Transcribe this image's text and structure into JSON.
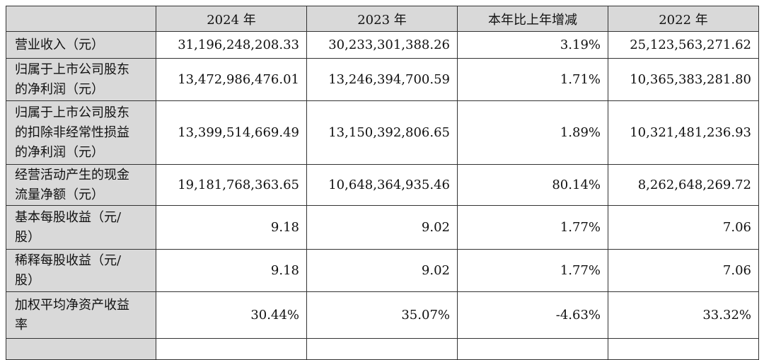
{
  "table": {
    "header": [
      "2024 年",
      "2023 年",
      "本年比上年增减",
      "2022 年"
    ],
    "rows": [
      {
        "label": [
          "营业收入（元）"
        ],
        "cells": [
          "31,196,248,208.33",
          "30,233,301,388.26",
          "3.19%",
          "25,123,563,271.62"
        ]
      },
      {
        "label": [
          "归属于上市公司股东",
          "的净利润（元）"
        ],
        "cells": [
          "13,472,986,476.01",
          "13,246,394,700.59",
          "1.71%",
          "10,365,383,281.80"
        ]
      },
      {
        "label": [
          "归属于上市公司股东",
          "的扣除非经常性损益",
          "的净利润（元）"
        ],
        "cells": [
          "13,399,514,669.49",
          "13,150,392,806.65",
          "1.89%",
          "10,321,481,236.93"
        ]
      },
      {
        "label": [
          "经营活动产生的现金",
          "流量净额（元）"
        ],
        "cells": [
          "19,181,768,363.65",
          "10,648,364,935.46",
          "80.14%",
          "8,262,648,269.72"
        ]
      },
      {
        "label": [
          "基本每股收益（元/",
          "股）"
        ],
        "cells": [
          "9.18",
          "9.02",
          "1.77%",
          "7.06"
        ]
      },
      {
        "label": [
          "稀释每股收益（元/",
          "股）"
        ],
        "cells": [
          "9.18",
          "9.02",
          "1.77%",
          "7.06"
        ]
      },
      {
        "label": [
          "加权平均净资产收益",
          "率"
        ],
        "cells": [
          "30.44%",
          "35.07%",
          "-4.63%",
          "33.32%"
        ]
      }
    ]
  }
}
